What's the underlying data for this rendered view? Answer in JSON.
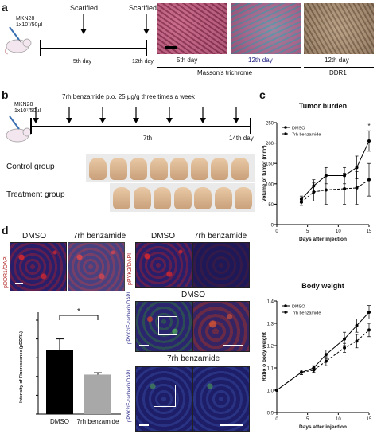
{
  "panel_a": {
    "letter": "a",
    "cells_label": "MKN28",
    "dose_label": "1x10⁷/50µl",
    "event1": "Scarified",
    "event2": "Scarified",
    "day1": "5th day",
    "day2": "12th day",
    "img_labels": [
      "5th day",
      "12th day",
      "12th day"
    ],
    "stain1": "Masson's trichrome",
    "stain2": "DDR1"
  },
  "panel_b": {
    "letter": "b",
    "cells_label": "MKN28",
    "dose_label": "1x10⁷/50µl",
    "treatment": "7rh benzamide p.o. 25 µg/g three times a week",
    "day_mid": "7th",
    "day_end": "14th day",
    "control_label": "Control group",
    "treatment_label": "Treatment group"
  },
  "panel_c": {
    "letter": "c",
    "colors": {
      "dmso": "#111111",
      "treated": "#111111"
    }
  },
  "panel_d": {
    "letter": "d",
    "dmso_label": "DMSO",
    "treated_label": "7rh benzamide",
    "dmso_label2": "DMSO",
    "treated_label2": "7rh benzamide",
    "dmso_label3": "DMSO",
    "treated_label3": "7rh benzamide",
    "vlabel_pddr1": "pDDR1/DAPI",
    "vlabel_ppyk2": "pPYK2/DAPI",
    "vlabel_ecad1": "pPYK2/E-cadherin/DAPI",
    "vlabel_ecad2": "pPYK2/E-cadherin/DAPI",
    "significance": "*"
  },
  "chart_data": [
    {
      "type": "line",
      "title": "Tumor burden",
      "xlabel": "Days after injection",
      "ylabel": "Volume of tumor (mm³)",
      "xlim": [
        0,
        15
      ],
      "ylim": [
        0,
        250
      ],
      "xticks": [
        0,
        5,
        10,
        15
      ],
      "yticks": [
        0,
        50,
        100,
        150,
        200,
        250
      ],
      "legend_position": "top-left",
      "annotation": "*",
      "x": [
        4,
        6,
        8,
        11,
        13,
        15
      ],
      "series": [
        {
          "name": "DMSO",
          "style": "solid",
          "values": [
            62,
            95,
            120,
            120,
            140,
            205
          ],
          "errors": [
            8,
            15,
            20,
            20,
            28,
            25
          ]
        },
        {
          "name": "7rh benzamide",
          "style": "dashed",
          "values": [
            55,
            80,
            85,
            88,
            90,
            110
          ],
          "errors": [
            8,
            22,
            35,
            38,
            40,
            40
          ]
        }
      ]
    },
    {
      "type": "line",
      "title": "Body weight",
      "xlabel": "Days after injection",
      "ylabel": "Ratio o body weight",
      "xlim": [
        0,
        15
      ],
      "ylim": [
        0.9,
        1.4
      ],
      "xticks": [
        0,
        5,
        10,
        15
      ],
      "yticks": [
        0.9,
        1.0,
        1.1,
        1.2,
        1.3,
        1.4
      ],
      "legend_position": "top-left",
      "x": [
        0,
        4,
        6,
        8,
        11,
        13,
        15
      ],
      "series": [
        {
          "name": "DMSO",
          "style": "solid",
          "values": [
            1.0,
            1.08,
            1.1,
            1.16,
            1.23,
            1.29,
            1.35
          ],
          "errors": [
            0,
            0.01,
            0.01,
            0.02,
            0.03,
            0.03,
            0.03
          ]
        },
        {
          "name": "7rh benzamide",
          "style": "dashed",
          "values": [
            1.0,
            1.08,
            1.09,
            1.13,
            1.19,
            1.22,
            1.27
          ],
          "errors": [
            0,
            0.01,
            0.01,
            0.02,
            0.02,
            0.03,
            0.03
          ]
        }
      ]
    },
    {
      "type": "bar",
      "title": "",
      "ylabel": "Intensity of Fluorescence (pDDR1)",
      "categories": [
        "DMSO",
        "7rh benzamide"
      ],
      "values": [
        68,
        42
      ],
      "errors": [
        12,
        2
      ],
      "ylim": [
        0,
        100
      ],
      "colors": [
        "#000000",
        "#a8a8a8"
      ],
      "annotation": "*"
    }
  ]
}
